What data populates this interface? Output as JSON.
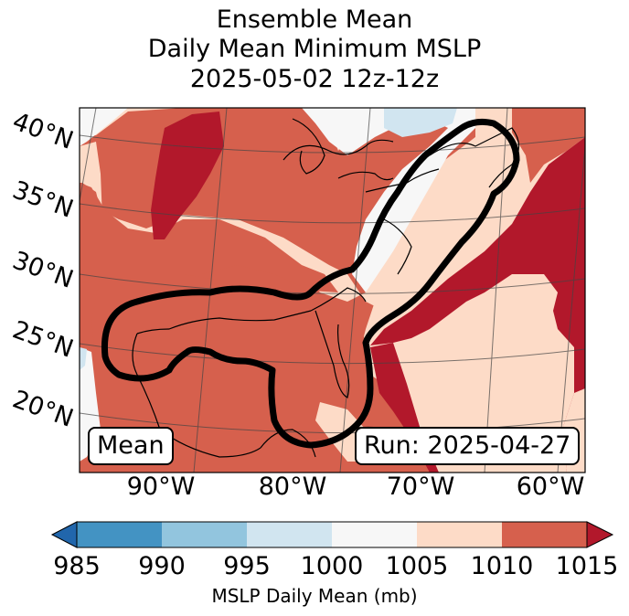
{
  "title": {
    "line1": "Ensemble Mean",
    "line2": "Daily Mean Minimum MSLP",
    "line3": "2025-05-02 12z-12z"
  },
  "map": {
    "lat_labels": [
      "40°N",
      "35°N",
      "30°N",
      "25°N",
      "20°N"
    ],
    "lon_labels": [
      "90°W",
      "80°W",
      "70°W",
      "60°W"
    ],
    "mean_label": "Mean",
    "run_label": "Run: 2025-04-27"
  },
  "colorbar": {
    "ticks": [
      "985",
      "990",
      "995",
      "1000",
      "1005",
      "1010",
      "1015"
    ],
    "label": "MSLP Daily Mean (mb)",
    "colors": {
      "below": "#2166ac",
      "985_990": "#4393c3",
      "990_995": "#92c5de",
      "995_1000": "#d1e5f0",
      "1000_1005": "#f7f7f7",
      "1005_1010": "#fddbc7",
      "1010_1015": "#d6604d",
      "above": "#b2182b"
    }
  }
}
